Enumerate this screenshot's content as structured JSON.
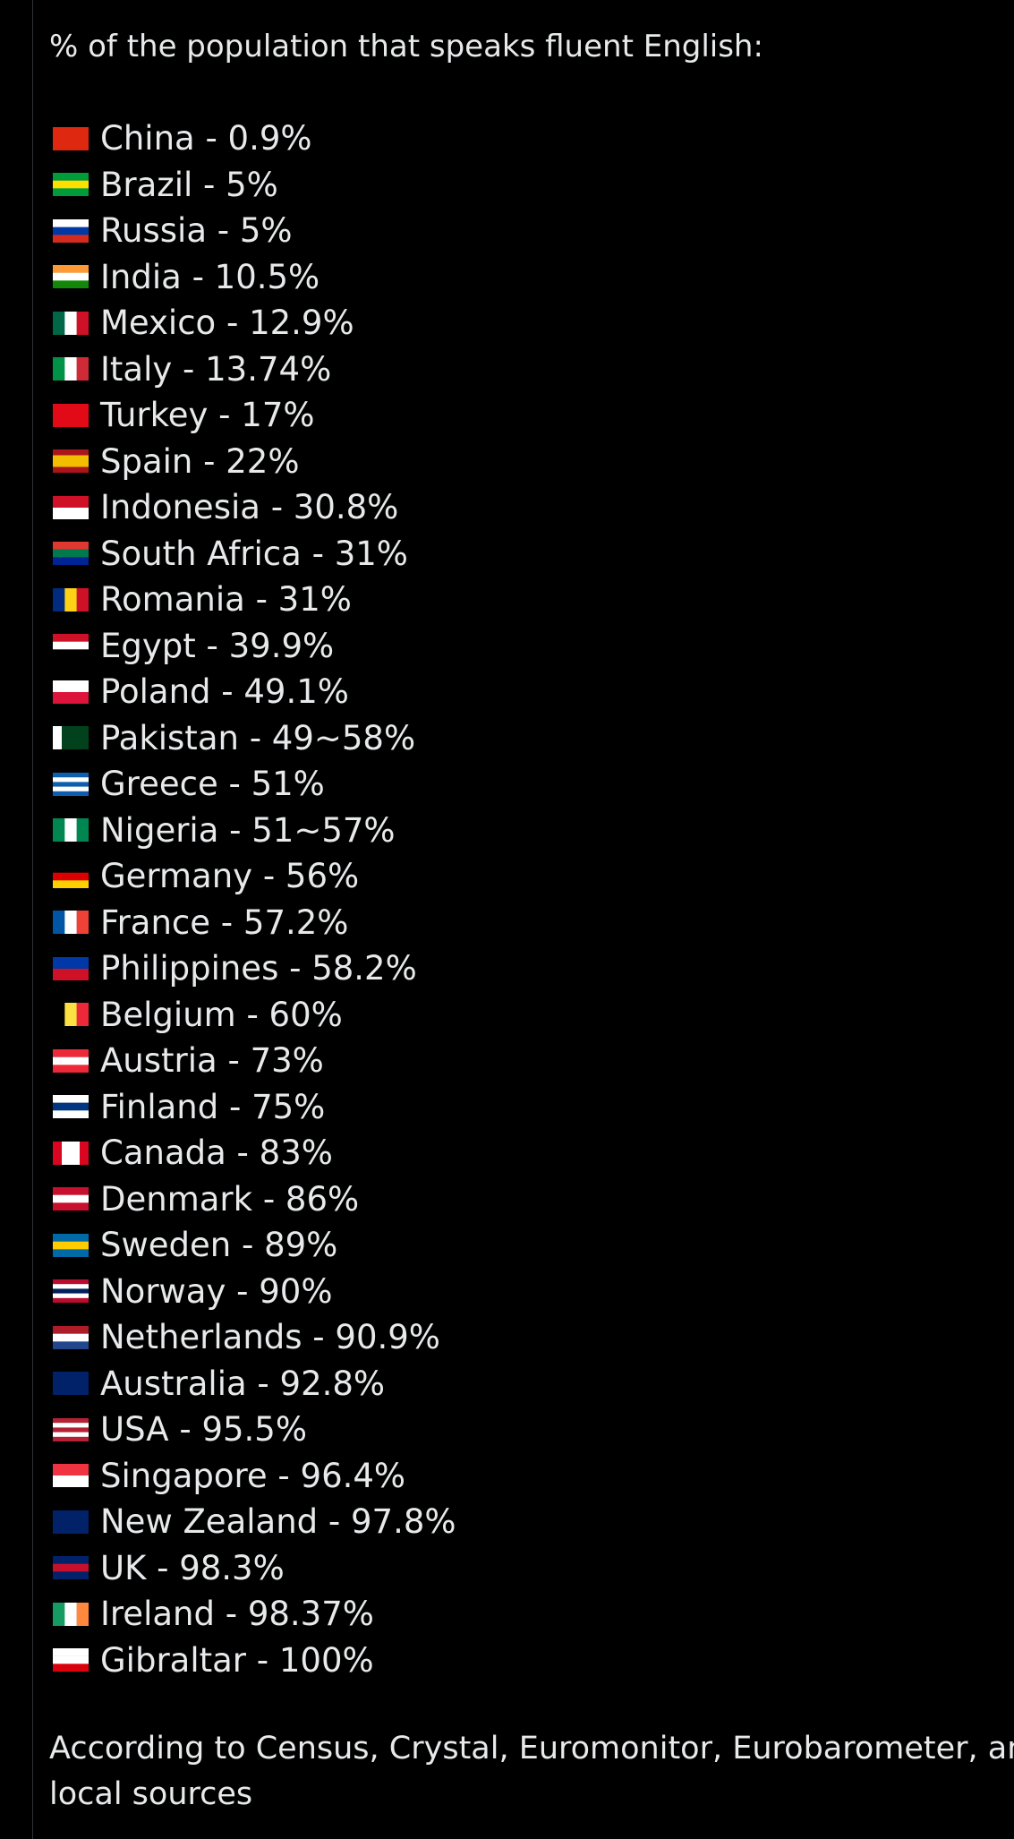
{
  "post": {
    "heading": "% of the population that speaks fluent English:",
    "rows": [
      "China - 0.9%",
      "Brazil - 5%",
      "Russia - 5%",
      "India - 10.5%",
      "Mexico - 12.9%",
      "Italy - 13.74%",
      "Turkey - 17%",
      "Spain - 22%",
      "Indonesia - 30.8%",
      "South Africa - 31%",
      "Romania - 31%",
      "Egypt - 39.9%",
      "Poland - 49.1%",
      "Pakistan - 49~58%",
      "Greece - 51%",
      "Nigeria - 51~57%",
      "Germany - 56%",
      "France - 57.2%",
      "Philippines - 58.2%",
      "Belgium - 60%",
      "Austria - 73%",
      "Finland - 75%",
      "Canada - 83%",
      "Denmark - 86%",
      "Sweden - 89%",
      "Norway - 90%",
      "Netherlands - 90.9%",
      "Australia - 92.8%",
      "USA - 95.5%",
      "Singapore - 96.4%",
      "New Zealand - 97.8%",
      "UK - 98.3%",
      "Ireland - 98.37%",
      "Gibraltar - 100%"
    ],
    "footer": [
      "According to Census, Crystal, Euromonitor, Eurobarometer, and",
      "local sources"
    ]
  }
}
